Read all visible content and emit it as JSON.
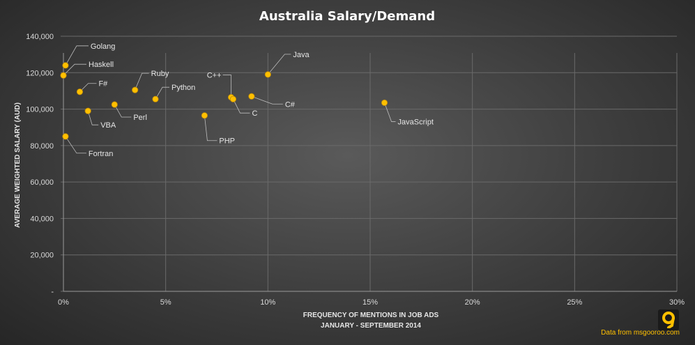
{
  "chart_data": {
    "type": "scatter",
    "title": "Australia  Salary/Demand",
    "xlabel": "FREQUENCY OF MENTIONS IN JOB ADS",
    "xlabel2": "JANUARY - SEPTEMBER 2014",
    "ylabel": "AVERAGE WEIGHTED SALARY (AUD)",
    "xlim": [
      0,
      30
    ],
    "ylim": [
      0,
      140000
    ],
    "x_ticks": [
      "0%",
      "5%",
      "10%",
      "15%",
      "20%",
      "25%",
      "30%"
    ],
    "y_ticks": [
      "-",
      "20,000",
      "40,000",
      "60,000",
      "80,000",
      "100,000",
      "120,000",
      "140,000"
    ],
    "grid": true,
    "point_color": "#ffc000",
    "points": [
      {
        "label": "Golang",
        "x": 0.1,
        "y": 124000
      },
      {
        "label": "Haskell",
        "x": 0.0,
        "y": 118500
      },
      {
        "label": "F#",
        "x": 0.8,
        "y": 109500
      },
      {
        "label": "Ruby",
        "x": 3.5,
        "y": 110500
      },
      {
        "label": "Python",
        "x": 4.5,
        "y": 105500
      },
      {
        "label": "Perl",
        "x": 2.5,
        "y": 102500
      },
      {
        "label": "VBA",
        "x": 1.2,
        "y": 99000
      },
      {
        "label": "Fortran",
        "x": 0.1,
        "y": 85000
      },
      {
        "label": "C++",
        "x": 8.2,
        "y": 106500
      },
      {
        "label": "C",
        "x": 8.3,
        "y": 105500
      },
      {
        "label": "C#",
        "x": 9.2,
        "y": 107000
      },
      {
        "label": "Java",
        "x": 10.0,
        "y": 119000
      },
      {
        "label": "PHP",
        "x": 6.9,
        "y": 96500
      },
      {
        "label": "JavaScript",
        "x": 15.7,
        "y": 103500
      }
    ]
  },
  "footer": {
    "logo_glyph": "9",
    "source": "Data from msgooroo.com"
  }
}
